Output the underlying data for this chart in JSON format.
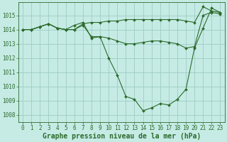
{
  "title": "Graphe pression niveau de la mer (hPa)",
  "bg_color": "#c5ebe4",
  "grid_color": "#9ecdc5",
  "line_color": "#2d6b2d",
  "xlim": [
    -0.5,
    23.5
  ],
  "ylim": [
    1007.5,
    1015.9
  ],
  "yticks": [
    1008,
    1009,
    1010,
    1011,
    1012,
    1013,
    1014,
    1015
  ],
  "xticks": [
    0,
    1,
    2,
    3,
    4,
    5,
    6,
    7,
    8,
    9,
    10,
    11,
    12,
    13,
    14,
    15,
    16,
    17,
    18,
    19,
    20,
    21,
    22,
    23
  ],
  "series1_x": [
    0,
    1,
    2,
    3,
    4,
    5,
    6,
    7,
    8,
    9,
    10,
    11,
    12,
    13,
    14,
    15,
    16,
    17,
    18,
    19,
    20,
    21,
    22,
    23
  ],
  "series1_y": [
    1014.0,
    1014.0,
    1014.2,
    1014.4,
    1014.1,
    1014.0,
    1014.0,
    1014.4,
    1014.5,
    1014.5,
    1014.6,
    1014.6,
    1014.7,
    1014.7,
    1014.7,
    1014.7,
    1014.7,
    1014.7,
    1014.7,
    1014.6,
    1014.5,
    1015.6,
    1015.3,
    1015.2
  ],
  "series2_x": [
    0,
    1,
    2,
    3,
    4,
    5,
    6,
    7,
    8,
    9,
    10,
    11,
    12,
    13,
    14,
    15,
    16,
    17,
    18,
    19,
    20,
    21,
    22,
    23
  ],
  "series2_y": [
    1014.0,
    1014.0,
    1014.2,
    1014.4,
    1014.1,
    1014.0,
    1014.0,
    1014.3,
    1013.5,
    1013.5,
    1013.4,
    1013.2,
    1013.0,
    1013.0,
    1013.1,
    1013.2,
    1013.2,
    1013.1,
    1013.0,
    1012.7,
    1012.8,
    1015.0,
    1015.2,
    1015.1
  ],
  "series3_x": [
    0,
    1,
    2,
    3,
    4,
    5,
    6,
    7,
    8,
    9,
    10,
    11,
    12,
    13,
    14,
    15,
    16,
    17,
    18,
    19,
    20,
    21,
    22,
    23
  ],
  "series3_y": [
    1014.0,
    1014.0,
    1014.2,
    1014.4,
    1014.1,
    1014.0,
    1014.3,
    1014.5,
    1013.4,
    1013.5,
    1012.0,
    1010.8,
    1009.3,
    1009.1,
    1008.3,
    1008.5,
    1008.8,
    1008.7,
    1009.1,
    1009.8,
    1012.7,
    1014.1,
    1015.5,
    1015.2
  ],
  "title_fontsize": 7,
  "tick_fontsize": 5.5
}
